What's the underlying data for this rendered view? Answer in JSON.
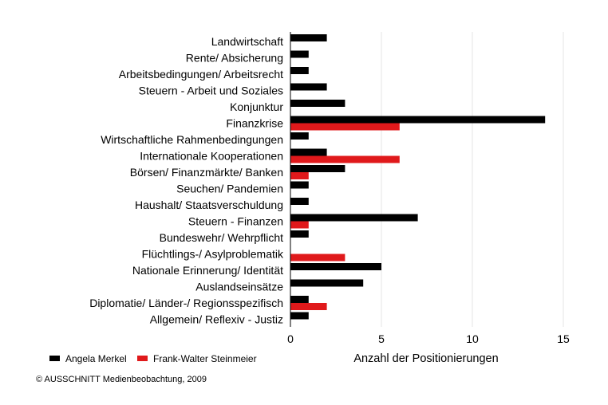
{
  "chart_data": {
    "type": "bar",
    "orientation": "horizontal",
    "categories": [
      "Landwirtschaft",
      "Rente/ Absicherung",
      "Arbeitsbedingungen/ Arbeitsrecht",
      "Steuern - Arbeit und Soziales",
      "Konjunktur",
      "Finanzkrise",
      "Wirtschaftliche Rahmenbedingungen",
      "Internationale Kooperationen",
      "Börsen/ Finanzmärkte/ Banken",
      "Seuchen/ Pandemien",
      "Haushalt/ Staatsverschuldung",
      "Steuern - Finanzen",
      "Bundeswehr/ Wehrpflicht",
      "Flüchtlings-/ Asylproblematik",
      "Nationale Erinnerung/ Identität",
      "Auslandseinsätze",
      "Diplomatie/ Länder-/ Regionsspezifisch",
      "Allgemein/ Reflexiv - Justiz"
    ],
    "series": [
      {
        "name": "Angela Merkel",
        "color": "#000000",
        "values": [
          2,
          1,
          1,
          2,
          3,
          14,
          1,
          2,
          3,
          1,
          1,
          7,
          1,
          0,
          5,
          4,
          1,
          1
        ]
      },
      {
        "name": "Frank-Walter Steinmeier",
        "color": "#e0191b",
        "values": [
          0,
          0,
          0,
          0,
          0,
          6,
          0,
          6,
          1,
          0,
          0,
          1,
          0,
          3,
          0,
          0,
          2,
          0
        ]
      }
    ],
    "xlabel": "Anzahl der Positionierungen",
    "ylabel": "",
    "xlim": [
      0,
      15
    ],
    "xticks": [
      0,
      5,
      10,
      15
    ],
    "grid": "vertical",
    "legend_position": "bottom-left"
  },
  "copyright": "© AUSSCHNITT Medienbeobachtung, 2009"
}
